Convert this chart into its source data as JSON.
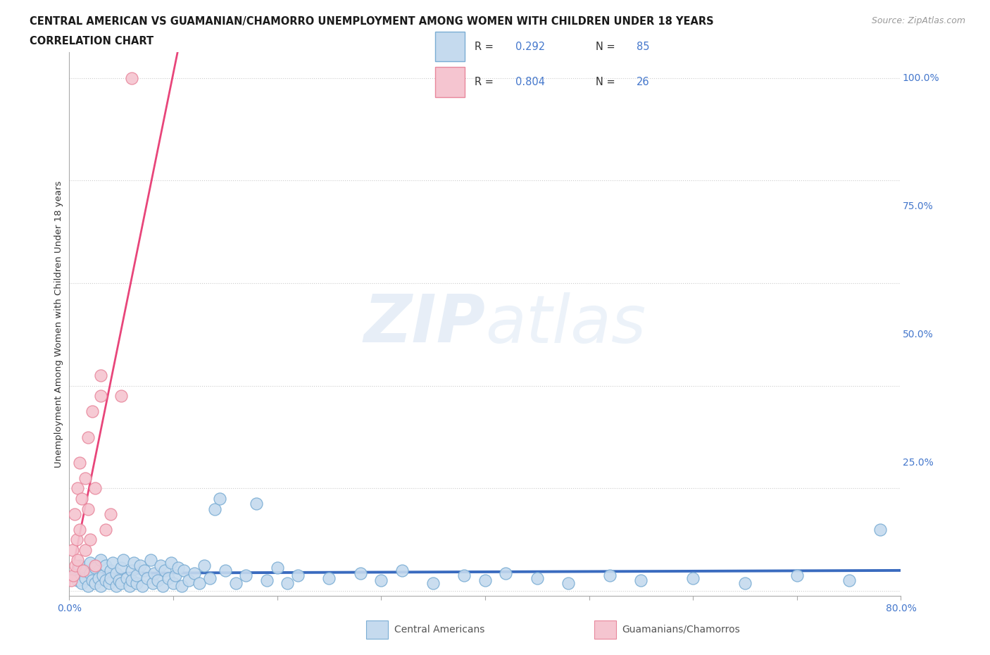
{
  "title_line1": "CENTRAL AMERICAN VS GUAMANIAN/CHAMORRO UNEMPLOYMENT AMONG WOMEN WITH CHILDREN UNDER 18 YEARS",
  "title_line2": "CORRELATION CHART",
  "source": "Source: ZipAtlas.com",
  "ylabel": "Unemployment Among Women with Children Under 18 years",
  "xlim": [
    0.0,
    0.8
  ],
  "ylim": [
    -0.01,
    1.05
  ],
  "xticks": [
    0.0,
    0.1,
    0.2,
    0.3,
    0.4,
    0.5,
    0.6,
    0.7,
    0.8
  ],
  "xticklabels": [
    "0.0%",
    "",
    "",
    "",
    "",
    "",
    "",
    "",
    "80.0%"
  ],
  "ytick_positions": [
    0.0,
    0.25,
    0.5,
    0.75,
    1.0
  ],
  "ytick_labels": [
    "",
    "25.0%",
    "50.0%",
    "75.0%",
    "100.0%"
  ],
  "grid_color": "#cccccc",
  "background_color": "#ffffff",
  "blue_color": "#7aadd4",
  "blue_fill": "#c5daee",
  "pink_color": "#e8879c",
  "pink_fill": "#f5c5d0",
  "blue_line_color": "#3a6bbf",
  "pink_line_color": "#e8457a",
  "R_blue": 0.292,
  "N_blue": 85,
  "R_pink": 0.804,
  "N_pink": 26,
  "watermark_zip": "ZIP",
  "watermark_atlas": "atlas",
  "legend_label_blue": "Central Americans",
  "legend_label_pink": "Guamanians/Chamorros",
  "blue_scatter_x": [
    0.005,
    0.008,
    0.01,
    0.012,
    0.015,
    0.015,
    0.018,
    0.02,
    0.02,
    0.022,
    0.025,
    0.025,
    0.028,
    0.03,
    0.03,
    0.032,
    0.035,
    0.035,
    0.038,
    0.04,
    0.04,
    0.042,
    0.045,
    0.045,
    0.048,
    0.05,
    0.05,
    0.052,
    0.055,
    0.058,
    0.06,
    0.06,
    0.062,
    0.065,
    0.065,
    0.068,
    0.07,
    0.072,
    0.075,
    0.078,
    0.08,
    0.082,
    0.085,
    0.088,
    0.09,
    0.092,
    0.095,
    0.098,
    0.1,
    0.102,
    0.105,
    0.108,
    0.11,
    0.115,
    0.12,
    0.125,
    0.13,
    0.135,
    0.14,
    0.145,
    0.15,
    0.16,
    0.17,
    0.18,
    0.19,
    0.2,
    0.21,
    0.22,
    0.25,
    0.28,
    0.3,
    0.32,
    0.35,
    0.38,
    0.4,
    0.42,
    0.45,
    0.48,
    0.52,
    0.55,
    0.6,
    0.65,
    0.7,
    0.75,
    0.78
  ],
  "blue_scatter_y": [
    0.03,
    0.02,
    0.05,
    0.015,
    0.025,
    0.04,
    0.01,
    0.035,
    0.055,
    0.02,
    0.015,
    0.045,
    0.025,
    0.01,
    0.06,
    0.03,
    0.02,
    0.05,
    0.015,
    0.04,
    0.025,
    0.055,
    0.01,
    0.035,
    0.02,
    0.045,
    0.015,
    0.06,
    0.025,
    0.01,
    0.04,
    0.02,
    0.055,
    0.015,
    0.03,
    0.05,
    0.01,
    0.04,
    0.025,
    0.06,
    0.015,
    0.035,
    0.02,
    0.05,
    0.01,
    0.04,
    0.025,
    0.055,
    0.015,
    0.03,
    0.045,
    0.01,
    0.04,
    0.02,
    0.035,
    0.015,
    0.05,
    0.025,
    0.16,
    0.18,
    0.04,
    0.015,
    0.03,
    0.17,
    0.02,
    0.045,
    0.015,
    0.03,
    0.025,
    0.035,
    0.02,
    0.04,
    0.015,
    0.03,
    0.02,
    0.035,
    0.025,
    0.015,
    0.03,
    0.02,
    0.025,
    0.015,
    0.03,
    0.02,
    0.12
  ],
  "pink_scatter_x": [
    0.002,
    0.003,
    0.004,
    0.005,
    0.006,
    0.007,
    0.008,
    0.008,
    0.01,
    0.01,
    0.012,
    0.013,
    0.015,
    0.015,
    0.018,
    0.018,
    0.02,
    0.022,
    0.025,
    0.025,
    0.03,
    0.03,
    0.035,
    0.04,
    0.05,
    0.06
  ],
  "pink_scatter_y": [
    0.02,
    0.08,
    0.03,
    0.15,
    0.05,
    0.1,
    0.06,
    0.2,
    0.12,
    0.25,
    0.18,
    0.04,
    0.22,
    0.08,
    0.16,
    0.3,
    0.1,
    0.35,
    0.2,
    0.05,
    0.38,
    0.42,
    0.12,
    0.15,
    0.38,
    1.0
  ]
}
